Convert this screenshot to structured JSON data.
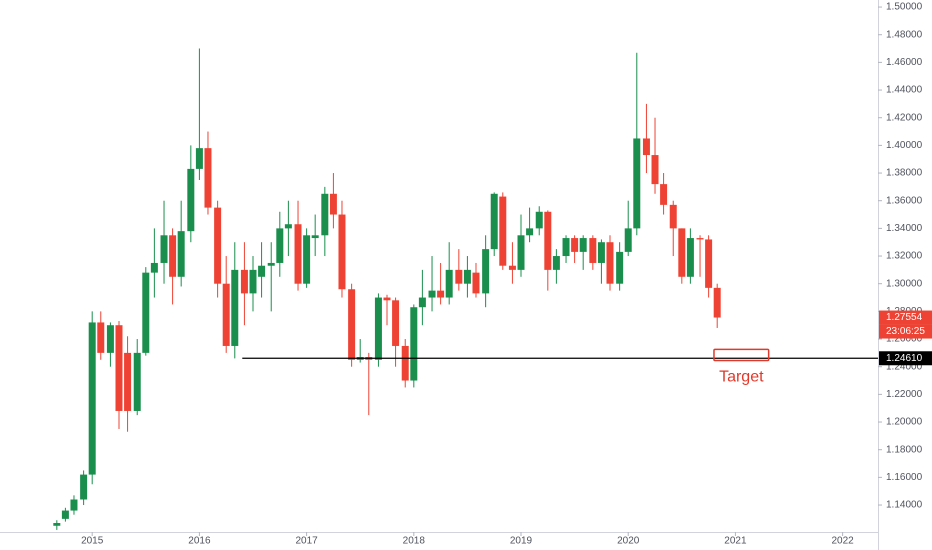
{
  "chart_data": {
    "type": "candlestick",
    "x": [
      2014.67,
      2014.75,
      2014.83,
      2014.92,
      2015.0,
      2015.08,
      2015.17,
      2015.25,
      2015.33,
      2015.42,
      2015.5,
      2015.58,
      2015.67,
      2015.75,
      2015.83,
      2015.92,
      2016.0,
      2016.08,
      2016.17,
      2016.25,
      2016.33,
      2016.42,
      2016.5,
      2016.58,
      2016.67,
      2016.75,
      2016.83,
      2016.92,
      2017.0,
      2017.08,
      2017.17,
      2017.25,
      2017.33,
      2017.42,
      2017.5,
      2017.58,
      2017.67,
      2017.75,
      2017.83,
      2017.92,
      2018.0,
      2018.08,
      2018.17,
      2018.25,
      2018.33,
      2018.42,
      2018.5,
      2018.58,
      2018.67,
      2018.75,
      2018.83,
      2018.92,
      2019.0,
      2019.08,
      2019.17,
      2019.25,
      2019.33,
      2019.42,
      2019.5,
      2019.58,
      2019.67,
      2019.75,
      2019.83,
      2019.92,
      2020.0,
      2020.08,
      2020.17,
      2020.25,
      2020.33,
      2020.42,
      2020.5,
      2020.58,
      2020.67,
      2020.75,
      2020.83
    ],
    "open": [
      1.125,
      1.13,
      1.136,
      1.144,
      1.162,
      1.272,
      1.25,
      1.27,
      1.25,
      1.208,
      1.25,
      1.308,
      1.315,
      1.335,
      1.305,
      1.338,
      1.383,
      1.398,
      1.355,
      1.3,
      1.255,
      1.31,
      1.293,
      1.305,
      1.313,
      1.315,
      1.34,
      1.343,
      1.3,
      1.333,
      1.335,
      1.365,
      1.35,
      1.296,
      1.245,
      1.247,
      1.245,
      1.29,
      1.288,
      1.255,
      1.23,
      1.283,
      1.29,
      1.295,
      1.29,
      1.31,
      1.3,
      1.308,
      1.293,
      1.325,
      1.363,
      1.313,
      1.31,
      1.335,
      1.34,
      1.352,
      1.31,
      1.32,
      1.333,
      1.323,
      1.333,
      1.315,
      1.33,
      1.3,
      1.323,
      1.34,
      1.405,
      1.393,
      1.372,
      1.357,
      1.34,
      1.305,
      1.333,
      1.332,
      1.297
    ],
    "high": [
      1.129,
      1.138,
      1.147,
      1.165,
      1.28,
      1.28,
      1.272,
      1.273,
      1.262,
      1.26,
      1.312,
      1.34,
      1.36,
      1.34,
      1.36,
      1.4,
      1.47,
      1.41,
      1.36,
      1.32,
      1.33,
      1.33,
      1.32,
      1.33,
      1.33,
      1.352,
      1.36,
      1.36,
      1.34,
      1.35,
      1.37,
      1.38,
      1.36,
      1.3,
      1.26,
      1.25,
      1.293,
      1.292,
      1.29,
      1.26,
      1.285,
      1.31,
      1.32,
      1.315,
      1.33,
      1.325,
      1.32,
      1.315,
      1.335,
      1.366,
      1.366,
      1.33,
      1.35,
      1.355,
      1.356,
      1.353,
      1.325,
      1.335,
      1.335,
      1.335,
      1.335,
      1.332,
      1.335,
      1.33,
      1.36,
      1.467,
      1.43,
      1.42,
      1.38,
      1.36,
      1.34,
      1.34,
      1.335,
      1.335,
      1.3
    ],
    "low": [
      1.122,
      1.128,
      1.133,
      1.14,
      1.155,
      1.245,
      1.24,
      1.195,
      1.193,
      1.205,
      1.248,
      1.29,
      1.3,
      1.285,
      1.298,
      1.33,
      1.375,
      1.35,
      1.29,
      1.25,
      1.246,
      1.27,
      1.28,
      1.29,
      1.28,
      1.305,
      1.32,
      1.295,
      1.297,
      1.32,
      1.32,
      1.34,
      1.29,
      1.24,
      1.243,
      1.205,
      1.24,
      1.27,
      1.24,
      1.225,
      1.225,
      1.27,
      1.28,
      1.285,
      1.285,
      1.295,
      1.29,
      1.29,
      1.283,
      1.32,
      1.31,
      1.3,
      1.305,
      1.33,
      1.335,
      1.295,
      1.3,
      1.315,
      1.315,
      1.31,
      1.31,
      1.3,
      1.295,
      1.295,
      1.32,
      1.335,
      1.38,
      1.365,
      1.35,
      1.32,
      1.3,
      1.3,
      1.305,
      1.29,
      1.268
    ],
    "close": [
      1.127,
      1.136,
      1.144,
      1.162,
      1.272,
      1.25,
      1.27,
      1.208,
      1.208,
      1.25,
      1.308,
      1.315,
      1.335,
      1.305,
      1.338,
      1.383,
      1.398,
      1.355,
      1.3,
      1.255,
      1.31,
      1.293,
      1.31,
      1.313,
      1.315,
      1.34,
      1.343,
      1.3,
      1.335,
      1.335,
      1.365,
      1.35,
      1.296,
      1.245,
      1.247,
      1.245,
      1.29,
      1.288,
      1.255,
      1.23,
      1.283,
      1.29,
      1.295,
      1.29,
      1.31,
      1.3,
      1.31,
      1.293,
      1.325,
      1.365,
      1.313,
      1.31,
      1.335,
      1.34,
      1.352,
      1.31,
      1.32,
      1.333,
      1.323,
      1.333,
      1.315,
      1.33,
      1.3,
      1.323,
      1.34,
      1.405,
      1.393,
      1.372,
      1.357,
      1.34,
      1.305,
      1.333,
      1.332,
      1.297,
      1.27554
    ],
    "up_color": "#1a8f4d",
    "down_color": "#ee4334",
    "xlim": [
      2014.14,
      2022.33
    ],
    "xticks": [
      2015,
      2016,
      2017,
      2018,
      2019,
      2020,
      2021,
      2022
    ],
    "ylim": [
      1.1205,
      1.5051
    ],
    "yticks": [
      {
        "value": 1.14,
        "label": "1.14000"
      },
      {
        "value": 1.16,
        "label": "1.16000"
      },
      {
        "value": 1.18,
        "label": "1.18000"
      },
      {
        "value": 1.2,
        "label": "1.20000"
      },
      {
        "value": 1.22,
        "label": "1.22000"
      },
      {
        "value": 1.24,
        "label": "1.24000"
      },
      {
        "value": 1.26,
        "label": "1.26000"
      },
      {
        "value": 1.28,
        "label": "1.28000"
      },
      {
        "value": 1.3,
        "label": "1.30000"
      },
      {
        "value": 1.32,
        "label": "1.32000"
      },
      {
        "value": 1.34,
        "label": "1.34000"
      },
      {
        "value": 1.36,
        "label": "1.36000"
      },
      {
        "value": 1.38,
        "label": "1.38000"
      },
      {
        "value": 1.4,
        "label": "1.40000"
      },
      {
        "value": 1.42,
        "label": "1.42000"
      },
      {
        "value": 1.44,
        "label": "1.44000"
      },
      {
        "value": 1.46,
        "label": "1.46000"
      },
      {
        "value": 1.48,
        "label": "1.48000"
      },
      {
        "value": 1.5,
        "label": "1.50000"
      }
    ],
    "horizontal_line": {
      "value": 1.2461,
      "label": "1.24610",
      "from_x": 2016.4,
      "color": "#000000"
    },
    "last_price": {
      "value": 1.27554,
      "label": "1.27554",
      "countdown": "23:06:25",
      "color": "#ee4334"
    },
    "annotation": {
      "text": "Target",
      "x": [
        2020.8,
        2021.31
      ],
      "y": [
        1.2445,
        1.2525
      ],
      "color": "#e0392b"
    }
  }
}
